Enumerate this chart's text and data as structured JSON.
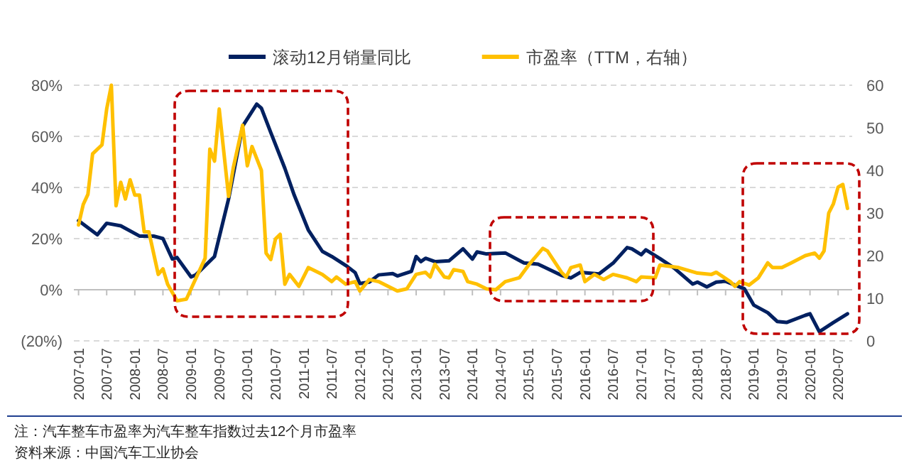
{
  "chart_data": {
    "type": "line",
    "legend": "top",
    "grid": "y",
    "line_style": "solid",
    "xlim": [
      "2006-12",
      "2020-10"
    ],
    "xticks": [
      "2007-01",
      "2007-07",
      "2008-01",
      "2008-07",
      "2009-01",
      "2009-07",
      "2010-01",
      "2010-07",
      "2011-01",
      "2011-07",
      "2012-01",
      "2012-07",
      "2013-01",
      "2013-07",
      "2014-01",
      "2014-07",
      "2015-01",
      "2015-07",
      "2016-01",
      "2016-07",
      "2017-01",
      "2017-07",
      "2018-01",
      "2018-07",
      "2019-01",
      "2019-07",
      "2020-01",
      "2020-07"
    ],
    "ylim": [
      -20,
      80
    ],
    "yticks": [
      {
        "value": -20,
        "label": "(20%)"
      },
      {
        "value": 0,
        "label": "0%"
      },
      {
        "value": 20,
        "label": "20%"
      },
      {
        "value": 40,
        "label": "40%"
      },
      {
        "value": 60,
        "label": "60%"
      },
      {
        "value": 80,
        "label": "80%"
      }
    ],
    "y2lim": [
      0,
      60
    ],
    "y2ticks": [
      0,
      10,
      20,
      30,
      40,
      50,
      60
    ],
    "series": [
      {
        "name": "滚动12月销量同比",
        "color": "#002060",
        "x": [
          "2007-01",
          "2007-05",
          "2007-07",
          "2007-10",
          "2008-02",
          "2008-05",
          "2008-07",
          "2008-09",
          "2008-10",
          "2009-01",
          "2009-02",
          "2009-06",
          "2009-09",
          "2009-12",
          "2010-03",
          "2010-04",
          "2010-06",
          "2010-09",
          "2010-11",
          "2011-02",
          "2011-05",
          "2011-07",
          "2011-10",
          "2011-12",
          "2012-01",
          "2012-03",
          "2012-05",
          "2012-08",
          "2012-09",
          "2012-12",
          "2013-01",
          "2013-02",
          "2013-03",
          "2013-05",
          "2013-08",
          "2013-11",
          "2014-01",
          "2014-02",
          "2014-04",
          "2014-08",
          "2014-12",
          "2015-03",
          "2015-08",
          "2015-10",
          "2015-12",
          "2016-04",
          "2016-07",
          "2016-10",
          "2016-11",
          "2017-01",
          "2017-02",
          "2017-05",
          "2017-08",
          "2017-12",
          "2018-01",
          "2018-03",
          "2018-05",
          "2018-07",
          "2018-11",
          "2019-01",
          "2019-04",
          "2019-06",
          "2019-08",
          "2019-12",
          "2020-01",
          "2020-03",
          "2020-06",
          "2020-09"
        ],
        "values": [
          27,
          21.5,
          26,
          25,
          21,
          21,
          20,
          12,
          12.6,
          5,
          5.8,
          13,
          35.5,
          64,
          72.6,
          71,
          61.5,
          47.5,
          37,
          23.4,
          15,
          13,
          9.5,
          6.7,
          2.4,
          3,
          5.8,
          6.3,
          5.4,
          7.2,
          13,
          11,
          12.3,
          11,
          11.3,
          16,
          12,
          14.8,
          14,
          14.4,
          10.5,
          10,
          5.6,
          4.6,
          6.8,
          6.2,
          10.4,
          16.5,
          16,
          13.7,
          15.6,
          12.2,
          8.5,
          2.2,
          3,
          1.1,
          3,
          3.3,
          0.4,
          -6,
          -9,
          -12.4,
          -12.8,
          -10,
          -9.4,
          -16.4,
          -12.8,
          -9.4
        ]
      },
      {
        "name": "市盈率（TTM，右轴）",
        "color": "#ffc000",
        "axis": "y2",
        "x": [
          "2007-01",
          "2007-02",
          "2007-03",
          "2007-04",
          "2007-06",
          "2007-07",
          "2007-08",
          "2007-09",
          "2007-10",
          "2007-11",
          "2007-12",
          "2008-01",
          "2008-02",
          "2008-03",
          "2008-04",
          "2008-06",
          "2008-07",
          "2008-08",
          "2008-10",
          "2008-12",
          "2009-01",
          "2009-04",
          "2009-05",
          "2009-06",
          "2009-07",
          "2009-09",
          "2009-10",
          "2009-12",
          "2010-01",
          "2010-02",
          "2010-04",
          "2010-05",
          "2010-06",
          "2010-07",
          "2010-08",
          "2010-09",
          "2010-10",
          "2010-12",
          "2011-02",
          "2011-05",
          "2011-07",
          "2011-08",
          "2011-10",
          "2011-12",
          "2012-01",
          "2012-03",
          "2012-05",
          "2012-09",
          "2012-11",
          "2013-01",
          "2013-03",
          "2013-04",
          "2013-05",
          "2013-07",
          "2013-08",
          "2013-09",
          "2013-11",
          "2013-12",
          "2014-02",
          "2014-04",
          "2014-06",
          "2014-08",
          "2014-11",
          "2015-01",
          "2015-04",
          "2015-05",
          "2015-08",
          "2015-09",
          "2015-10",
          "2015-12",
          "2016-01",
          "2016-03",
          "2016-05",
          "2016-07",
          "2016-10",
          "2016-12",
          "2017-01",
          "2017-04",
          "2017-05",
          "2017-09",
          "2018-01",
          "2018-04",
          "2018-05",
          "2018-08",
          "2018-09",
          "2018-10",
          "2018-12",
          "2019-02",
          "2019-04",
          "2019-05",
          "2019-07",
          "2019-09",
          "2019-12",
          "2020-02",
          "2020-03",
          "2020-04",
          "2020-05",
          "2020-06",
          "2020-07",
          "2020-08",
          "2020-09"
        ],
        "values": [
          27.2,
          32,
          34.4,
          43.9,
          46,
          54.4,
          60,
          31.7,
          37.2,
          33.3,
          37.8,
          34.2,
          34.2,
          25.6,
          25.6,
          15.6,
          16.9,
          13.3,
          9.4,
          9.8,
          12.2,
          19.4,
          45,
          42.2,
          54.4,
          33.9,
          40.6,
          50.6,
          41.1,
          45.6,
          40,
          20.6,
          19.1,
          23.9,
          25,
          13.3,
          15.6,
          12.8,
          17.2,
          15.6,
          13.9,
          15,
          13.3,
          13.9,
          11.7,
          14.4,
          13.9,
          11.7,
          12.2,
          15.6,
          16.1,
          15,
          18,
          15,
          14.8,
          16.7,
          16.3,
          13.9,
          13.3,
          12.2,
          12,
          13.9,
          14.8,
          17.8,
          21.7,
          21.1,
          16.1,
          15,
          17.2,
          17.8,
          13.9,
          15.6,
          14.4,
          15.6,
          14.8,
          13.9,
          15,
          14.8,
          17.8,
          17.2,
          15.9,
          15.6,
          16.1,
          13.9,
          12.8,
          13.9,
          13.1,
          14.8,
          18.3,
          17.2,
          17.2,
          18.3,
          20,
          20.6,
          19.4,
          21.1,
          30,
          32.2,
          36.1,
          36.7,
          31.1
        ]
      }
    ],
    "annotations": [
      "注：汽车整车市盈率为汽车整车指数过去12个月市盈率",
      "资料来源：中国汽车工业协会"
    ]
  }
}
